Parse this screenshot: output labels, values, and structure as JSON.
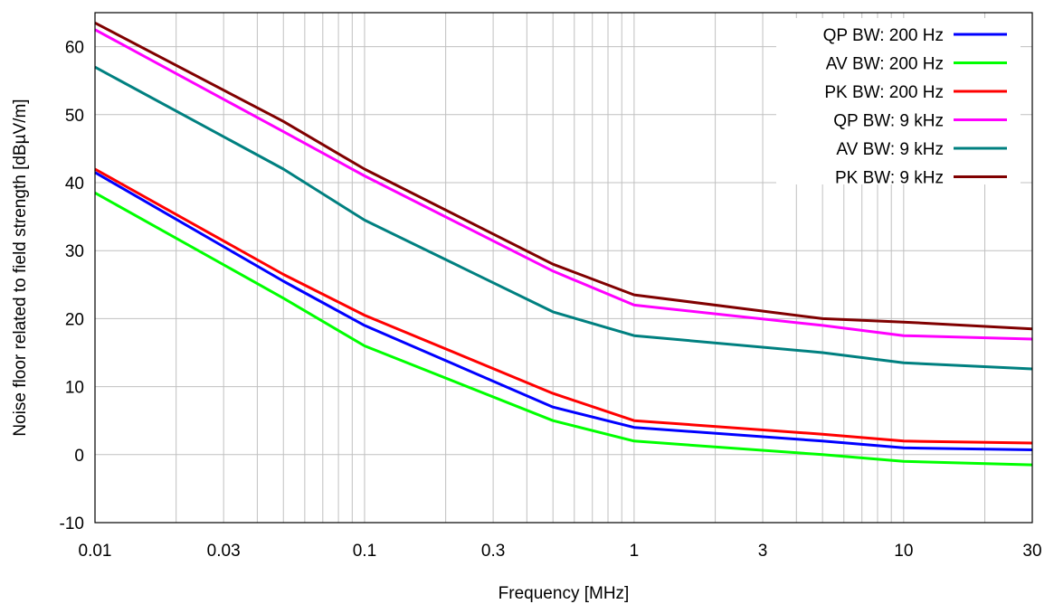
{
  "chart_data": {
    "type": "line",
    "title": "",
    "xlabel": "Frequency [MHz]",
    "ylabel": "Noise floor related to field strength [dBµV/m]",
    "xscale": "log",
    "xlim": [
      0.01,
      30
    ],
    "ylim": [
      -10,
      65
    ],
    "x_ticks": [
      {
        "value": 0.01,
        "label": "0.01"
      },
      {
        "value": 0.03,
        "label": "0.03"
      },
      {
        "value": 0.1,
        "label": "0.1"
      },
      {
        "value": 0.3,
        "label": "0.3"
      },
      {
        "value": 1,
        "label": "1"
      },
      {
        "value": 3,
        "label": "3"
      },
      {
        "value": 10,
        "label": "10"
      },
      {
        "value": 30,
        "label": "30"
      }
    ],
    "y_ticks": [
      {
        "value": -10,
        "label": "-10"
      },
      {
        "value": 0,
        "label": "0"
      },
      {
        "value": 10,
        "label": "10"
      },
      {
        "value": 20,
        "label": "20"
      },
      {
        "value": 30,
        "label": "30"
      },
      {
        "value": 40,
        "label": "40"
      },
      {
        "value": 50,
        "label": "50"
      },
      {
        "value": 60,
        "label": "60"
      }
    ],
    "grid": true,
    "legend_position": "top-right",
    "series": [
      {
        "name": "QP BW: 200 Hz",
        "color": "#0000ff",
        "x": [
          0.01,
          0.05,
          0.1,
          0.5,
          1,
          5,
          10,
          30
        ],
        "y": [
          41.5,
          25.5,
          19,
          7,
          4,
          2,
          1,
          0.7
        ]
      },
      {
        "name": "AV BW: 200 Hz",
        "color": "#00ff00",
        "x": [
          0.01,
          0.05,
          0.1,
          0.5,
          1,
          5,
          10,
          30
        ],
        "y": [
          38.5,
          23,
          16,
          5,
          2,
          0,
          -1,
          -1.5
        ]
      },
      {
        "name": "PK BW: 200 Hz",
        "color": "#ff0000",
        "x": [
          0.01,
          0.05,
          0.1,
          0.5,
          1,
          5,
          10,
          30
        ],
        "y": [
          42,
          26.5,
          20.5,
          9,
          5,
          3,
          2,
          1.7
        ]
      },
      {
        "name": "QP BW: 9 kHz",
        "color": "#ff00ff",
        "x": [
          0.01,
          0.05,
          0.1,
          0.5,
          1,
          5,
          10,
          30
        ],
        "y": [
          62.5,
          47.5,
          41,
          27,
          22,
          19,
          17.5,
          17
        ]
      },
      {
        "name": "AV BW: 9 kHz",
        "color": "#008080",
        "x": [
          0.01,
          0.05,
          0.1,
          0.5,
          1,
          5,
          10,
          30
        ],
        "y": [
          57,
          42,
          34.5,
          21,
          17.5,
          15,
          13.5,
          12.6
        ]
      },
      {
        "name": "PK BW: 9 kHz",
        "color": "#800000",
        "x": [
          0.01,
          0.05,
          0.1,
          0.5,
          1,
          5,
          10,
          30
        ],
        "y": [
          63.5,
          49,
          42,
          28,
          23.5,
          20,
          19.5,
          18.5
        ]
      }
    ]
  }
}
